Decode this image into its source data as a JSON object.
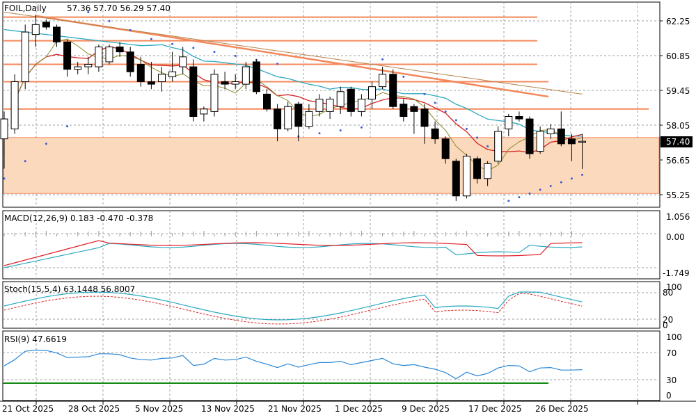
{
  "header": {
    "symbol_label": "FOIL,Daily",
    "ohlc_values": "57.36 57.70 56.29 57.40"
  },
  "price_axis": {
    "ticks": [
      "62.25",
      "60.85",
      "59.45",
      "58.05",
      "56.65",
      "55.25"
    ],
    "tick_values": [
      62.25,
      60.85,
      59.45,
      58.05,
      56.65,
      55.25
    ],
    "current_price": "57.40",
    "current_value": 57.4
  },
  "macd": {
    "label": "MACD(12,26,9) 0.183 -0.470 -0.378",
    "ticks": [
      "1.056",
      "0.00",
      "-1.749"
    ]
  },
  "stoch": {
    "label": "Stoch(15,5,4) 63.1448 56.8007",
    "ticks": [
      "100",
      "80",
      "20",
      "0"
    ]
  },
  "rsi": {
    "label": "RSI(9) 47.6619",
    "ticks": [
      "100",
      "70",
      "30",
      "0"
    ]
  },
  "time_axis": {
    "labels": [
      "21 Oct 2025",
      "28 Oct 2025",
      "5 Nov 2025",
      "13 Nov 2025",
      "21 Nov 2025",
      "1 Dec 2025",
      "9 Dec 2025",
      "17 Dec 2025",
      "26 Dec 2025"
    ]
  },
  "colors": {
    "bull": "#ffffff",
    "bear": "#000000",
    "zone": "#fbd9bd",
    "level_line": "#f3875a",
    "trend_line": "#f3875a",
    "ma_fast": "#d62020",
    "ma_mid": "#8a8a2a",
    "ma_slow": "#2aa8c0",
    "ma_long": "#b5834a",
    "sar": "#3b5bd6",
    "macd_signal": "#e0202a",
    "macd_main": "#2aa8c0",
    "stoch_main": "#2aa8c0",
    "stoch_signal": "#d62020",
    "rsi_line": "#2a88d8",
    "rsi_level": "#138a13"
  },
  "chart_data": {
    "type": "candlestick",
    "candles": [
      {
        "o": 57.5,
        "h": 58.6,
        "l": 56.3,
        "c": 58.3
      },
      {
        "o": 57.9,
        "h": 60.1,
        "l": 57.7,
        "c": 59.8
      },
      {
        "o": 59.8,
        "h": 62.1,
        "l": 59.5,
        "c": 61.8
      },
      {
        "o": 61.7,
        "h": 62.5,
        "l": 61.2,
        "c": 62.1
      },
      {
        "o": 62.2,
        "h": 62.3,
        "l": 61.9,
        "c": 62.0
      },
      {
        "o": 62.0,
        "h": 62.1,
        "l": 61.2,
        "c": 61.4
      },
      {
        "o": 61.4,
        "h": 61.5,
        "l": 60.0,
        "c": 60.3
      },
      {
        "o": 60.3,
        "h": 60.6,
        "l": 60.1,
        "c": 60.4
      },
      {
        "o": 60.4,
        "h": 60.8,
        "l": 60.1,
        "c": 60.5
      },
      {
        "o": 60.4,
        "h": 61.3,
        "l": 60.2,
        "c": 61.2
      },
      {
        "o": 60.6,
        "h": 61.3,
        "l": 60.5,
        "c": 61.2
      },
      {
        "o": 61.2,
        "h": 61.4,
        "l": 60.8,
        "c": 61.0
      },
      {
        "o": 61.0,
        "h": 61.2,
        "l": 60.0,
        "c": 60.2
      },
      {
        "o": 60.5,
        "h": 60.8,
        "l": 59.6,
        "c": 59.8
      },
      {
        "o": 59.8,
        "h": 60.6,
        "l": 59.5,
        "c": 59.7
      },
      {
        "o": 59.8,
        "h": 60.4,
        "l": 59.4,
        "c": 60.1
      },
      {
        "o": 60.0,
        "h": 61.0,
        "l": 59.8,
        "c": 60.2
      },
      {
        "o": 60.4,
        "h": 61.2,
        "l": 60.1,
        "c": 60.8
      },
      {
        "o": 60.4,
        "h": 60.7,
        "l": 58.2,
        "c": 58.4
      },
      {
        "o": 58.5,
        "h": 58.8,
        "l": 58.2,
        "c": 58.7
      },
      {
        "o": 58.6,
        "h": 60.3,
        "l": 58.4,
        "c": 60.1
      },
      {
        "o": 59.8,
        "h": 60.2,
        "l": 59.5,
        "c": 59.7
      },
      {
        "o": 59.7,
        "h": 60.1,
        "l": 59.5,
        "c": 59.8
      },
      {
        "o": 59.7,
        "h": 60.6,
        "l": 59.5,
        "c": 60.4
      },
      {
        "o": 60.6,
        "h": 60.7,
        "l": 59.3,
        "c": 59.4
      },
      {
        "o": 59.3,
        "h": 59.5,
        "l": 58.6,
        "c": 58.7
      },
      {
        "o": 58.7,
        "h": 58.9,
        "l": 57.4,
        "c": 57.9
      },
      {
        "o": 57.9,
        "h": 59.0,
        "l": 57.8,
        "c": 58.8
      },
      {
        "o": 58.9,
        "h": 59.0,
        "l": 57.4,
        "c": 58.0
      },
      {
        "o": 58.0,
        "h": 58.9,
        "l": 57.9,
        "c": 58.6
      },
      {
        "o": 58.6,
        "h": 59.3,
        "l": 58.4,
        "c": 59.1
      },
      {
        "o": 58.6,
        "h": 59.2,
        "l": 58.3,
        "c": 59.1
      },
      {
        "o": 58.8,
        "h": 59.6,
        "l": 58.5,
        "c": 59.4
      },
      {
        "o": 59.5,
        "h": 59.6,
        "l": 58.4,
        "c": 58.6
      },
      {
        "o": 58.6,
        "h": 59.3,
        "l": 58.4,
        "c": 59.1
      },
      {
        "o": 59.1,
        "h": 59.8,
        "l": 58.7,
        "c": 59.6
      },
      {
        "o": 59.6,
        "h": 60.4,
        "l": 59.5,
        "c": 60.1
      },
      {
        "o": 60.1,
        "h": 60.3,
        "l": 58.7,
        "c": 58.8
      },
      {
        "o": 58.9,
        "h": 59.1,
        "l": 58.2,
        "c": 58.4
      },
      {
        "o": 58.8,
        "h": 58.9,
        "l": 57.7,
        "c": 58.6
      },
      {
        "o": 58.7,
        "h": 58.9,
        "l": 57.3,
        "c": 58.0
      },
      {
        "o": 57.9,
        "h": 58.2,
        "l": 57.3,
        "c": 57.5
      },
      {
        "o": 57.5,
        "h": 57.6,
        "l": 56.5,
        "c": 56.7
      },
      {
        "o": 56.6,
        "h": 56.7,
        "l": 55.0,
        "c": 55.2
      },
      {
        "o": 55.2,
        "h": 56.9,
        "l": 55.1,
        "c": 56.8
      },
      {
        "o": 56.7,
        "h": 56.8,
        "l": 55.7,
        "c": 55.9
      },
      {
        "o": 55.9,
        "h": 56.6,
        "l": 55.6,
        "c": 56.5
      },
      {
        "o": 56.6,
        "h": 58.0,
        "l": 56.5,
        "c": 57.8
      },
      {
        "o": 57.9,
        "h": 58.5,
        "l": 57.6,
        "c": 58.4
      },
      {
        "o": 58.4,
        "h": 58.6,
        "l": 58.2,
        "c": 58.3
      },
      {
        "o": 58.3,
        "h": 58.4,
        "l": 56.7,
        "c": 56.9
      },
      {
        "o": 57.0,
        "h": 58.0,
        "l": 56.9,
        "c": 57.8
      },
      {
        "o": 57.7,
        "h": 58.1,
        "l": 57.5,
        "c": 57.9
      },
      {
        "o": 57.9,
        "h": 58.6,
        "l": 57.2,
        "c": 57.3
      },
      {
        "o": 57.5,
        "h": 57.7,
        "l": 56.6,
        "c": 57.3
      },
      {
        "o": 57.36,
        "h": 57.7,
        "l": 56.29,
        "c": 57.4
      }
    ]
  }
}
